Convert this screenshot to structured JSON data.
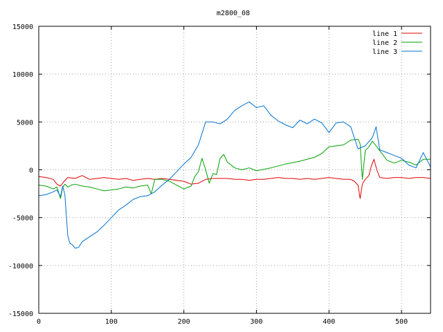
{
  "chart_data": {
    "type": "line",
    "title": "m2800_08",
    "xlabel": "",
    "ylabel": "",
    "xlim": [
      0,
      540
    ],
    "ylim": [
      -15000,
      15000
    ],
    "x_ticks": [
      0,
      100,
      200,
      300,
      400,
      500
    ],
    "y_ticks": [
      -15000,
      -10000,
      -5000,
      0,
      5000,
      10000,
      15000
    ],
    "grid": true,
    "legend_position": "top-right",
    "series": [
      {
        "name": "line 1",
        "color": "#e00000",
        "x": [
          0,
          10,
          20,
          25,
          30,
          35,
          40,
          50,
          60,
          70,
          80,
          90,
          100,
          110,
          120,
          130,
          140,
          150,
          160,
          170,
          180,
          190,
          200,
          210,
          220,
          230,
          240,
          250,
          260,
          270,
          280,
          290,
          300,
          310,
          320,
          330,
          340,
          350,
          360,
          370,
          380,
          390,
          400,
          410,
          420,
          430,
          435,
          440,
          443,
          446,
          450,
          455,
          458,
          462,
          466,
          470,
          480,
          490,
          500,
          510,
          520,
          530,
          540
        ],
        "y": [
          -700,
          -800,
          -1000,
          -1500,
          -1700,
          -1200,
          -800,
          -900,
          -600,
          -1000,
          -900,
          -800,
          -900,
          -1000,
          -900,
          -1100,
          -1000,
          -900,
          -1000,
          -900,
          -1000,
          -1100,
          -1200,
          -1500,
          -1400,
          -1000,
          -900,
          -900,
          -900,
          -1000,
          -1000,
          -1100,
          -1000,
          -1000,
          -900,
          -800,
          -900,
          -900,
          -1000,
          -900,
          -1000,
          -900,
          -800,
          -900,
          -1000,
          -1000,
          -1200,
          -1600,
          -3000,
          -1500,
          -1000,
          -600,
          300,
          1100,
          0,
          -800,
          -900,
          -800,
          -800,
          -900,
          -800,
          -800,
          -900
        ]
      },
      {
        "name": "line 2",
        "color": "#00a000",
        "x": [
          0,
          10,
          20,
          25,
          30,
          33,
          36,
          40,
          45,
          50,
          60,
          70,
          80,
          90,
          100,
          110,
          120,
          130,
          140,
          150,
          155,
          160,
          170,
          180,
          190,
          200,
          210,
          215,
          220,
          225,
          230,
          235,
          240,
          245,
          250,
          255,
          260,
          270,
          280,
          290,
          300,
          320,
          340,
          360,
          380,
          390,
          400,
          410,
          420,
          430,
          440,
          443,
          446,
          450,
          455,
          460,
          470,
          480,
          490,
          500,
          510,
          520,
          530,
          540
        ],
        "y": [
          -1600,
          -1700,
          -2000,
          -1800,
          -3000,
          -1800,
          -1500,
          -1800,
          -1600,
          -1500,
          -1700,
          -1800,
          -2000,
          -2200,
          -2100,
          -2000,
          -1800,
          -1900,
          -1700,
          -1600,
          -2500,
          -1000,
          -1000,
          -1200,
          -1600,
          -2000,
          -1700,
          -700,
          -200,
          1200,
          0,
          -1400,
          -400,
          -500,
          1200,
          1600,
          800,
          200,
          0,
          200,
          -100,
          200,
          600,
          900,
          1300,
          1700,
          2400,
          2500,
          2600,
          3100,
          3200,
          2700,
          -1000,
          2000,
          2400,
          3000,
          2000,
          1000,
          700,
          1000,
          800,
          500,
          1100,
          1100
        ]
      },
      {
        "name": "line 3",
        "color": "#0070d0",
        "x": [
          0,
          10,
          20,
          25,
          30,
          33,
          36,
          40,
          43,
          46,
          50,
          55,
          60,
          70,
          80,
          90,
          100,
          110,
          120,
          130,
          140,
          150,
          160,
          170,
          180,
          190,
          200,
          210,
          220,
          230,
          240,
          250,
          260,
          270,
          280,
          290,
          300,
          310,
          320,
          330,
          340,
          350,
          360,
          370,
          380,
          390,
          400,
          410,
          420,
          430,
          440,
          450,
          460,
          465,
          470,
          480,
          490,
          500,
          510,
          520,
          530,
          540
        ],
        "y": [
          -2700,
          -2600,
          -2300,
          -2100,
          -2800,
          -1700,
          -2600,
          -6900,
          -7700,
          -7800,
          -8200,
          -8100,
          -7500,
          -7000,
          -6500,
          -5800,
          -5000,
          -4200,
          -3700,
          -3100,
          -2800,
          -2700,
          -2300,
          -1600,
          -1000,
          -200,
          600,
          1300,
          2600,
          5000,
          5000,
          4800,
          5300,
          6200,
          6700,
          7100,
          6500,
          6700,
          5700,
          5100,
          4700,
          4400,
          5200,
          4800,
          5300,
          4900,
          3900,
          4900,
          5000,
          4500,
          2200,
          2500,
          3400,
          4500,
          2100,
          1800,
          1500,
          1200,
          500,
          200,
          1800,
          300
        ]
      }
    ]
  }
}
